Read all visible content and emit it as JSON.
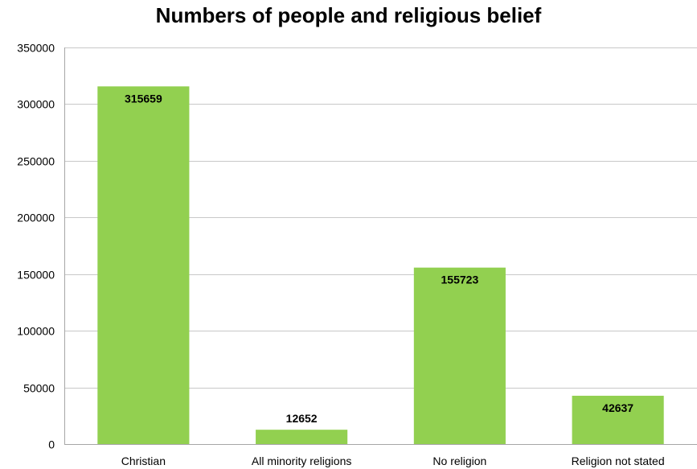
{
  "chart_data": {
    "type": "bar",
    "title": "Numbers of people and religious belief",
    "xlabel": "",
    "ylabel": "",
    "categories": [
      "Christian",
      "All minority religions",
      "No religion",
      "Religion not stated"
    ],
    "values": [
      315659,
      12652,
      155723,
      42637
    ],
    "data_labels": [
      "315659",
      "12652",
      "155723",
      "42637"
    ],
    "ylim": [
      0,
      350000
    ],
    "yticks": [
      0,
      50000,
      100000,
      150000,
      200000,
      250000,
      300000,
      350000
    ],
    "ytick_labels": [
      "0",
      "50000",
      "100000",
      "150000",
      "200000",
      "250000",
      "300000",
      "350000"
    ],
    "grid": true,
    "legend": "none",
    "bar_color": "#92d050",
    "grid_color": "#c8c8c8"
  }
}
